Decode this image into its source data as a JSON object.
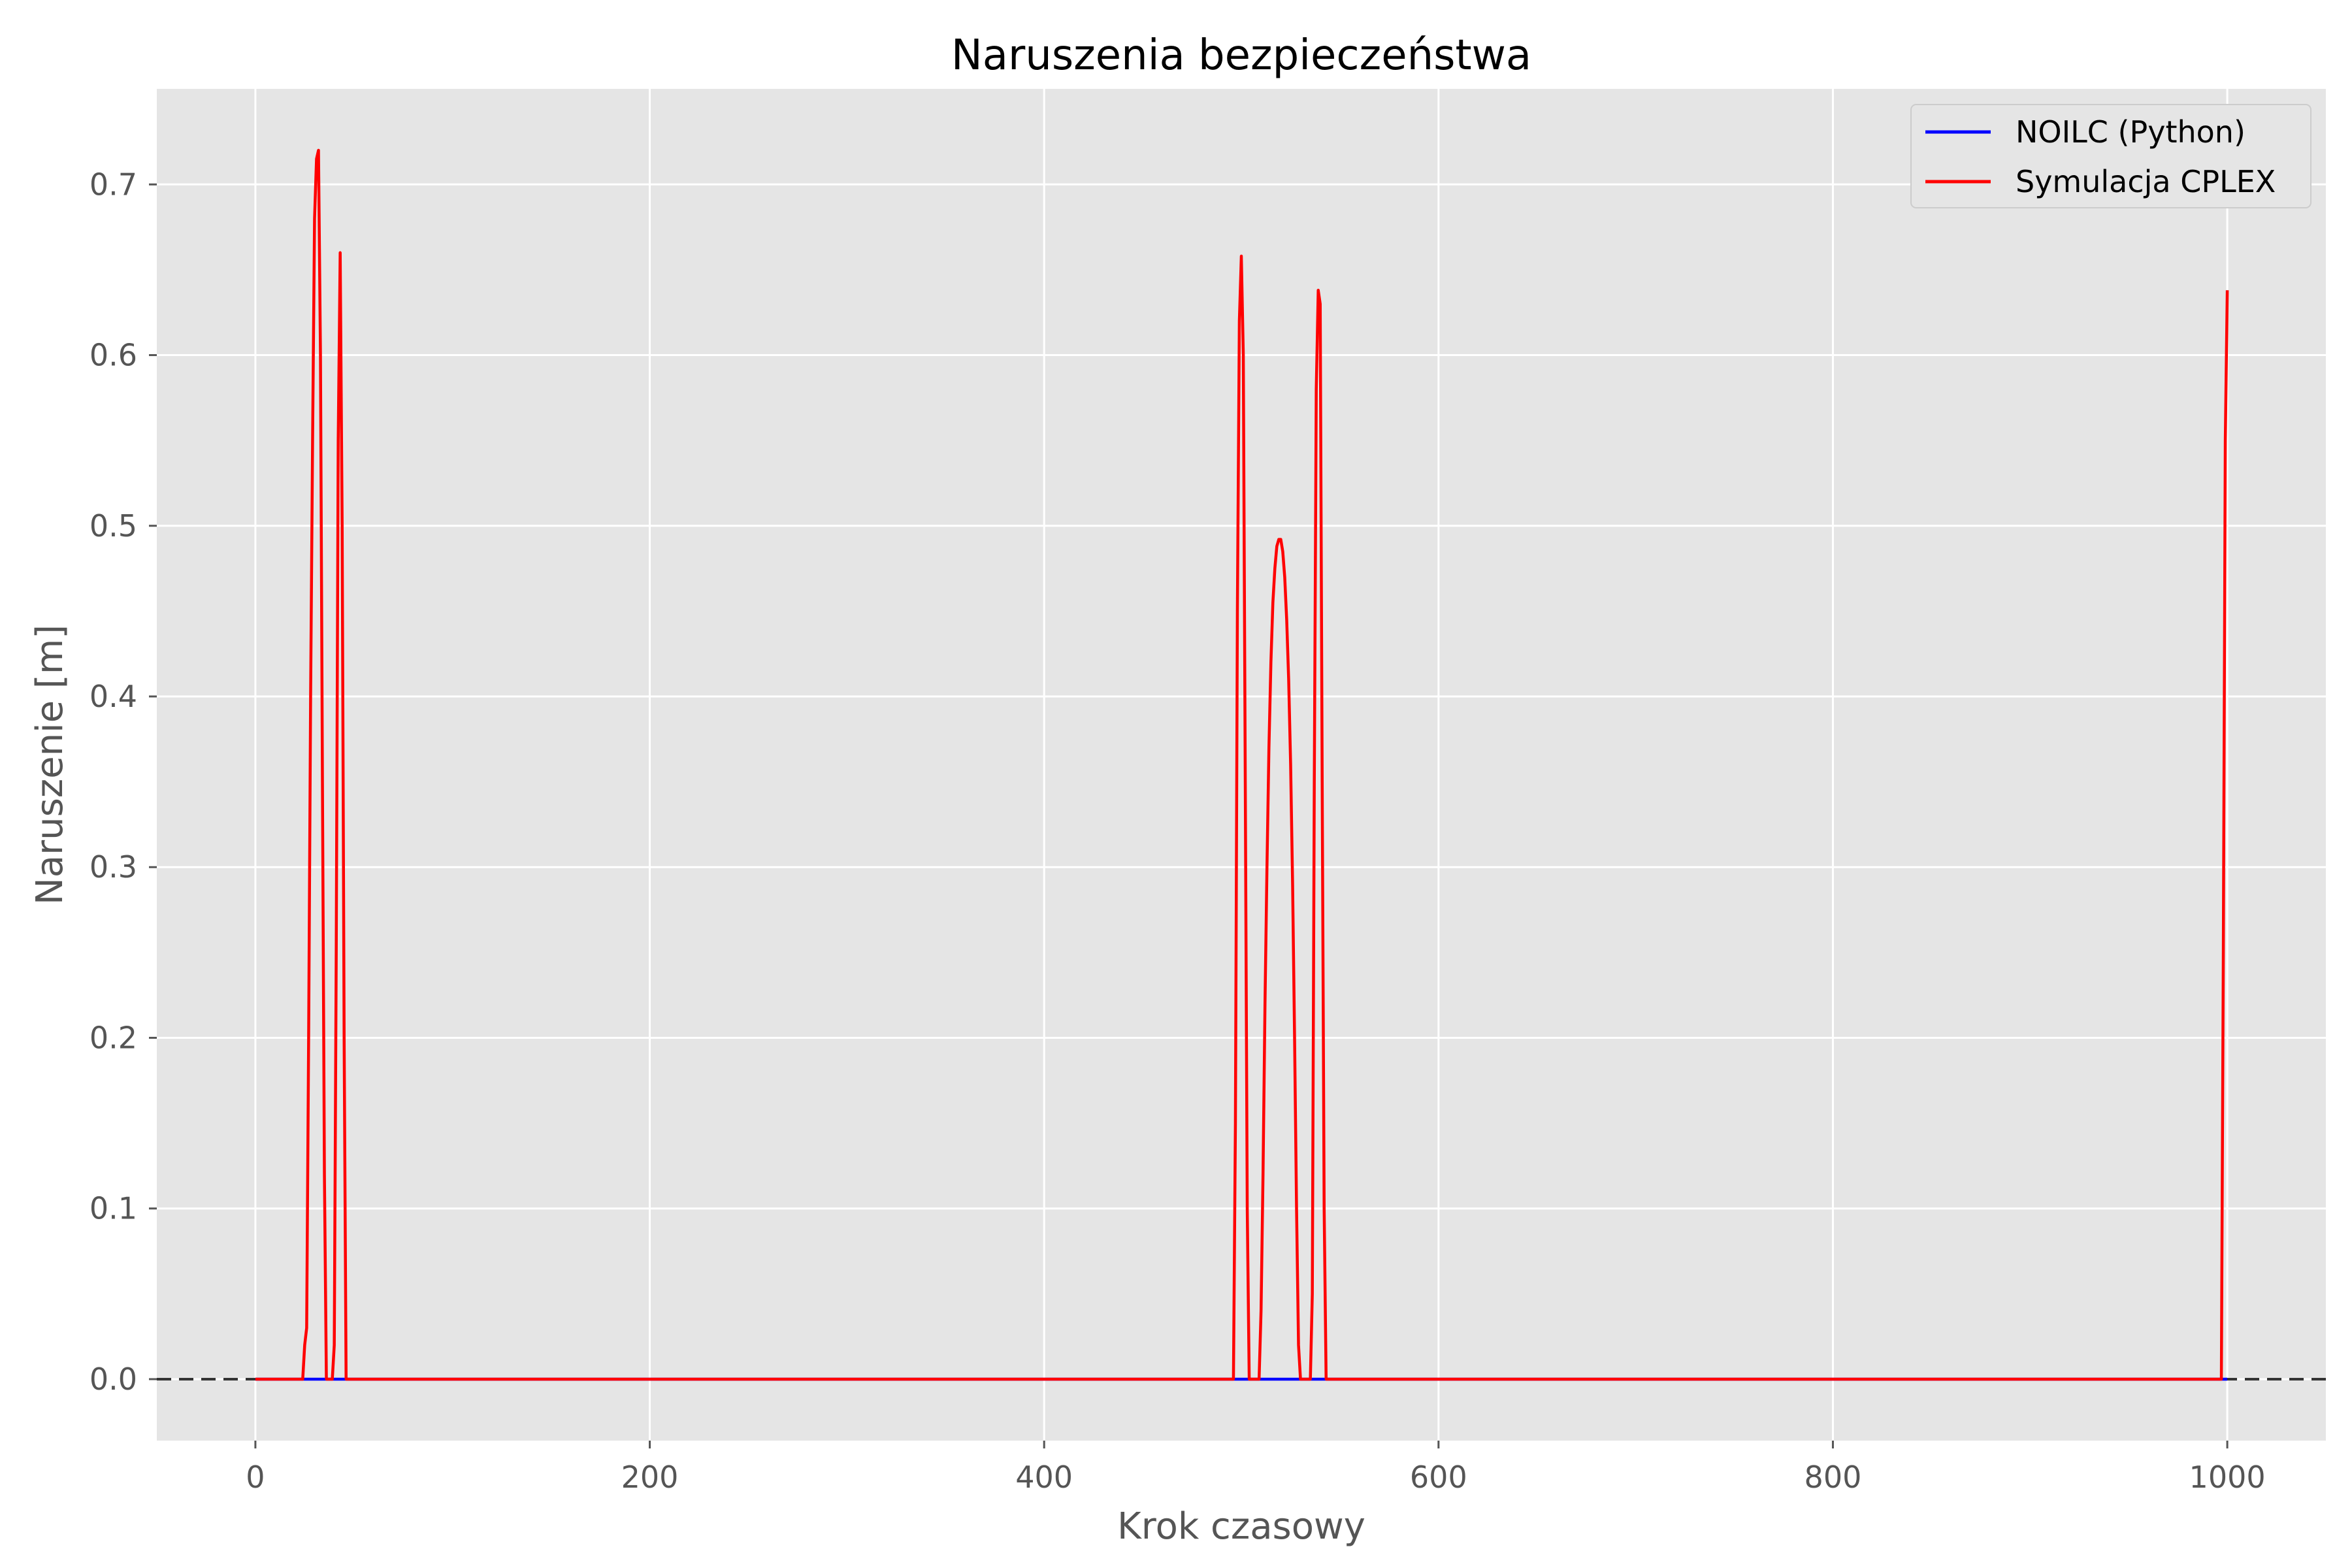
{
  "chart_data": {
    "type": "line",
    "title": "Naruszenia bezpieczeństwa",
    "xlabel": "Krok czasowy",
    "ylabel": "Naruszenie [m]",
    "xlim": [
      -50,
      1050
    ],
    "ylim": [
      -0.036,
      0.756
    ],
    "xticks": [
      0,
      200,
      400,
      600,
      800,
      1000
    ],
    "yticks": [
      0.0,
      0.1,
      0.2,
      0.3,
      0.4,
      0.5,
      0.6,
      0.7
    ],
    "xtick_labels": [
      "0",
      "200",
      "400",
      "600",
      "800",
      "1000"
    ],
    "ytick_labels": [
      "0.0",
      "0.1",
      "0.2",
      "0.3",
      "0.4",
      "0.5",
      "0.6",
      "0.7"
    ],
    "grid": true,
    "legend_position": "top-right",
    "reference_line": {
      "y": 0.0,
      "style": "dashed",
      "color": "#333333"
    },
    "series": [
      {
        "name": "NOILC (Python)",
        "color": "#0000ff",
        "x": [
          0,
          1000
        ],
        "y": [
          0.0,
          0.0
        ]
      },
      {
        "name": "Symulacja CPLEX",
        "color": "#ff0000",
        "x": [
          0,
          24,
          25,
          26,
          27,
          28,
          29,
          30,
          31,
          32,
          33,
          34,
          35,
          36,
          37,
          38,
          39,
          40,
          41,
          42,
          43,
          44,
          45,
          46,
          47,
          48,
          494,
          495,
          496,
          497,
          498,
          499,
          500,
          501,
          502,
          503,
          504,
          505,
          506,
          507,
          508,
          509,
          510,
          511,
          512,
          513,
          514,
          515,
          516,
          517,
          518,
          519,
          520,
          521,
          522,
          523,
          524,
          525,
          526,
          527,
          528,
          529,
          530,
          531,
          532,
          533,
          534,
          535,
          536,
          537,
          538,
          539,
          540,
          541,
          542,
          543,
          544,
          545,
          996,
          997,
          998,
          999,
          1000
        ],
        "y": [
          0.0,
          0.0,
          0.02,
          0.03,
          0.2,
          0.4,
          0.55,
          0.68,
          0.715,
          0.72,
          0.6,
          0.35,
          0.12,
          0.0,
          0.0,
          0.0,
          0.0,
          0.02,
          0.25,
          0.55,
          0.66,
          0.5,
          0.2,
          0.0,
          0.0,
          0.0,
          0.0,
          0.0,
          0.0,
          0.15,
          0.45,
          0.62,
          0.658,
          0.6,
          0.35,
          0.1,
          0.0,
          0.0,
          0.0,
          0.0,
          0.0,
          0.0,
          0.04,
          0.12,
          0.22,
          0.3,
          0.37,
          0.42,
          0.455,
          0.475,
          0.488,
          0.492,
          0.492,
          0.485,
          0.47,
          0.445,
          0.41,
          0.36,
          0.29,
          0.2,
          0.1,
          0.02,
          0.0,
          0.0,
          0.0,
          0.0,
          0.0,
          0.0,
          0.05,
          0.35,
          0.58,
          0.638,
          0.63,
          0.35,
          0.1,
          0.0,
          0.0,
          0.0,
          0.0,
          0.0,
          0.25,
          0.55,
          0.638
        ]
      }
    ]
  }
}
